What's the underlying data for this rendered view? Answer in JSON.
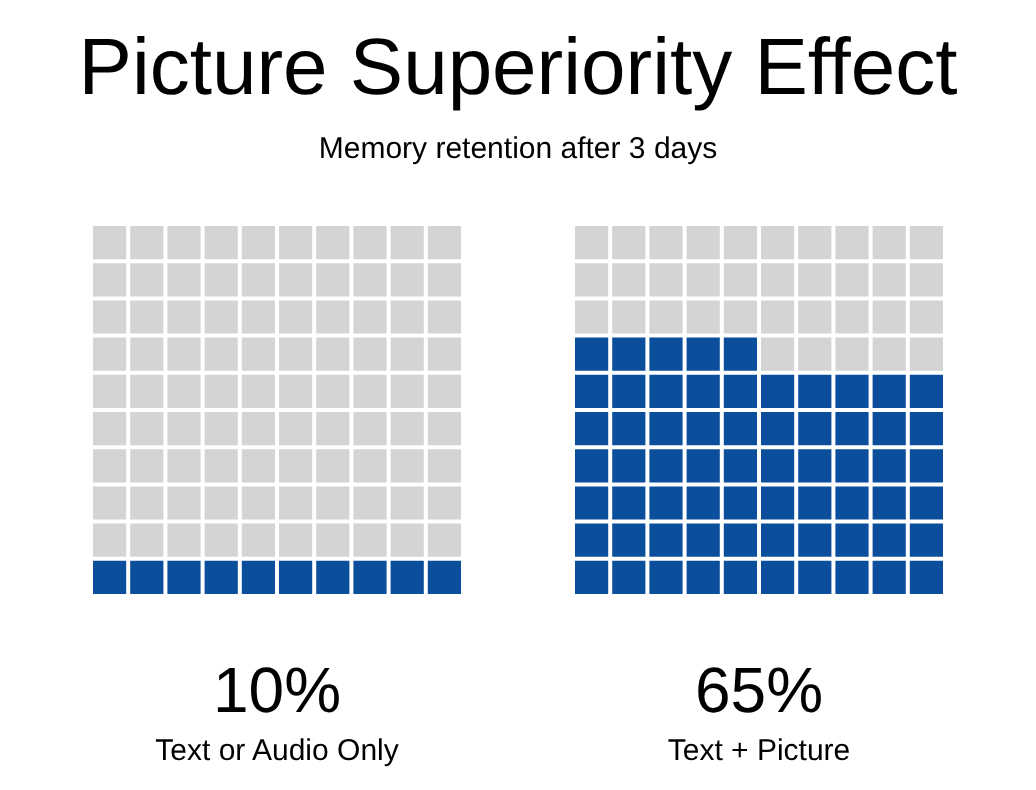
{
  "chart_data": {
    "type": "other",
    "title": "Picture Superiority Effect",
    "subtitle": "Memory retention after 3 days",
    "categories": [
      "Text or Audio Only",
      "Text + Picture"
    ],
    "values": [
      10,
      65
    ],
    "value_labels": [
      "10%",
      "65%"
    ],
    "colors": [
      "#0b4f9c",
      "#0b4f9c"
    ]
  }
}
